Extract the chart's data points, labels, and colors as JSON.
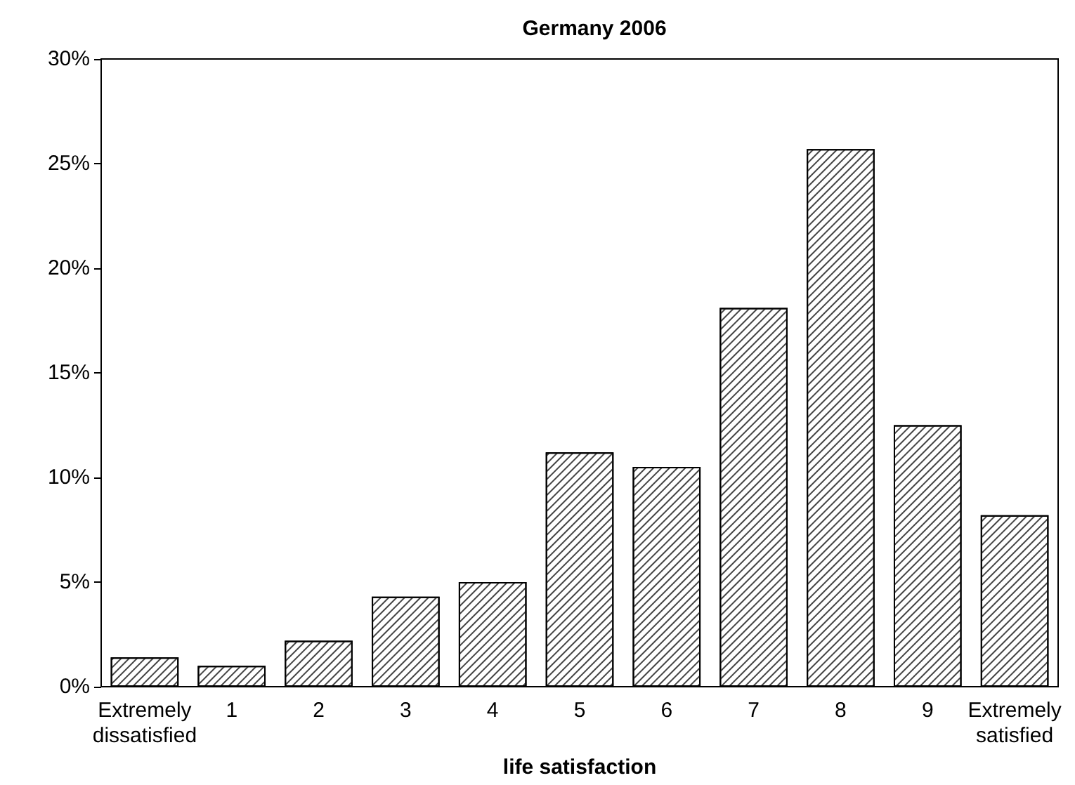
{
  "chart_data": {
    "type": "bar",
    "title": "Germany 2006",
    "xlabel": "life satisfaction",
    "categories": [
      "Extremely dissatisfied",
      "1",
      "2",
      "3",
      "4",
      "5",
      "6",
      "7",
      "8",
      "9",
      "Extremely satisfied"
    ],
    "values": [
      1.4,
      1.0,
      2.2,
      4.3,
      5.0,
      11.2,
      10.5,
      18.1,
      25.7,
      12.5,
      8.2
    ],
    "color": "#ffffff",
    "ylim": [
      0,
      30
    ],
    "yticks": [
      {
        "value": 0,
        "label": "0%"
      },
      {
        "value": 5,
        "label": "5%"
      },
      {
        "value": 10,
        "label": "10%"
      },
      {
        "value": 15,
        "label": "15%"
      },
      {
        "value": 20,
        "label": "20%"
      },
      {
        "value": 25,
        "label": "25%"
      },
      {
        "value": 30,
        "label": "30%"
      }
    ],
    "grid": false
  }
}
